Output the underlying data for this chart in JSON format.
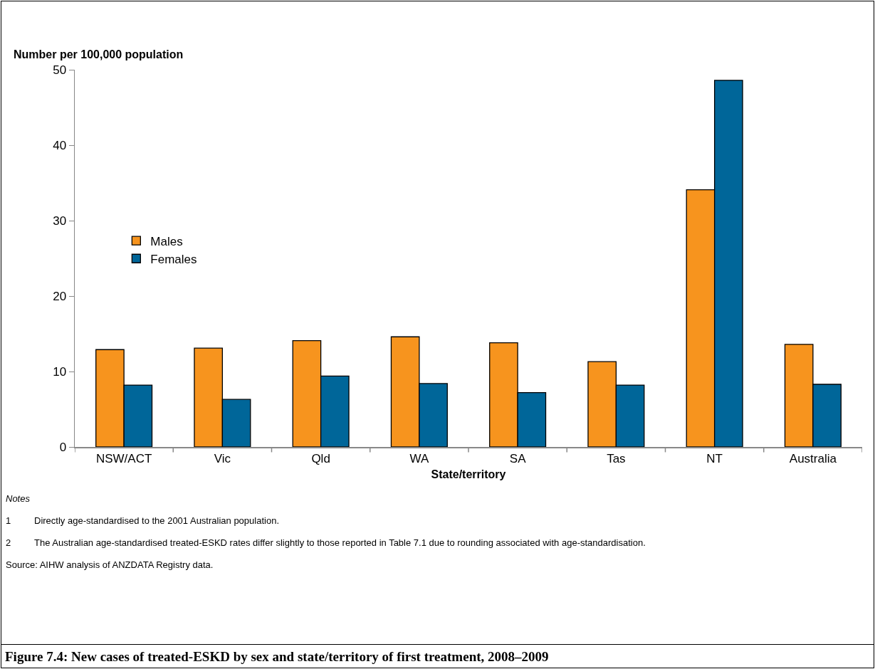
{
  "chart_data": {
    "type": "bar",
    "title": "Figure 7.4: New cases of treated-ESKD by sex and state/territory of first treatment, 2008–2009",
    "xlabel": "State/territory",
    "ylabel": "Number per 100,000 population",
    "categories": [
      "NSW/ACT",
      "Vic",
      "Qld",
      "WA",
      "SA",
      "Tas",
      "NT",
      "Australia"
    ],
    "series": [
      {
        "name": "Males",
        "color": "#f7941e",
        "values": [
          12.9,
          13.1,
          14.1,
          14.6,
          13.8,
          11.3,
          34.1,
          13.6
        ]
      },
      {
        "name": "Females",
        "color": "#006699",
        "values": [
          8.2,
          6.3,
          9.4,
          8.4,
          7.2,
          8.2,
          48.6,
          8.3
        ]
      }
    ],
    "ylim": [
      0,
      50
    ],
    "yticks": [
      0,
      10,
      20,
      30,
      40,
      50
    ],
    "grid": false,
    "legend": "left",
    "annotations": [
      "Notes",
      "1\tDirectly age-standardised to the 2001 Australian population.",
      "2\tThe Australian age-standardised treated-ESKD rates differ slightly to those reported in Table 7.1 due to rounding associated with age-standardisation.",
      "Source: AIHW analysis of ANZDATA Registry data."
    ]
  }
}
